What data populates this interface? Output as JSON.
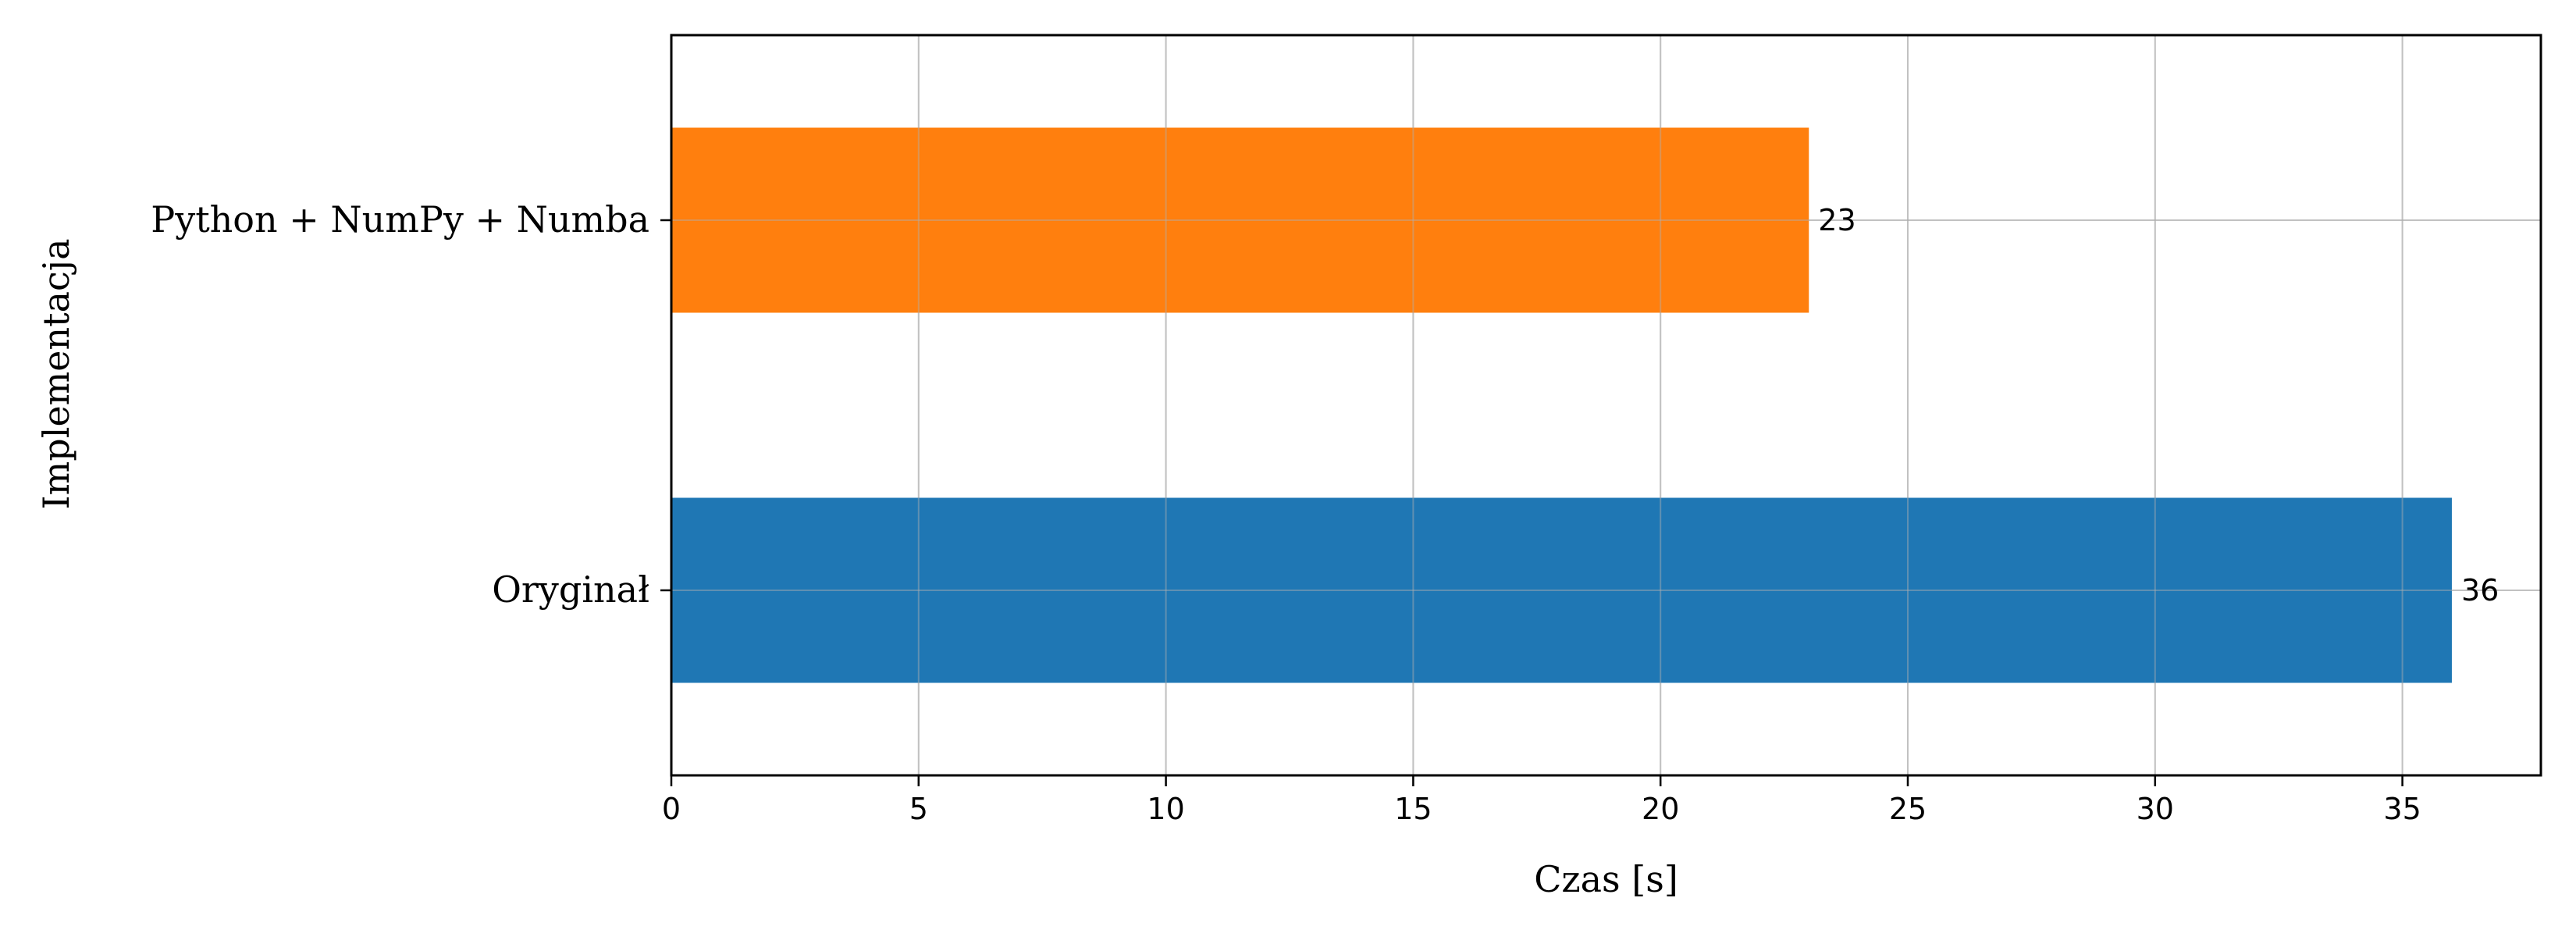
{
  "chart_data": {
    "type": "bar",
    "orientation": "horizontal",
    "categories": [
      "Python + NumPy + Numba",
      "Oryginał"
    ],
    "values": [
      23,
      36
    ],
    "data_labels": [
      "23",
      "36"
    ],
    "colors": [
      "#ff7f0e",
      "#1f77b4"
    ],
    "title": "",
    "xlabel": "Czas [s]",
    "ylabel": "Implementacja",
    "xlim": [
      0,
      37.8
    ],
    "xticks": [
      0,
      5,
      10,
      15,
      20,
      25,
      30,
      35
    ],
    "xtick_labels": [
      "0",
      "5",
      "10",
      "15",
      "20",
      "25",
      "30",
      "35"
    ],
    "grid": true,
    "legend": "none"
  }
}
